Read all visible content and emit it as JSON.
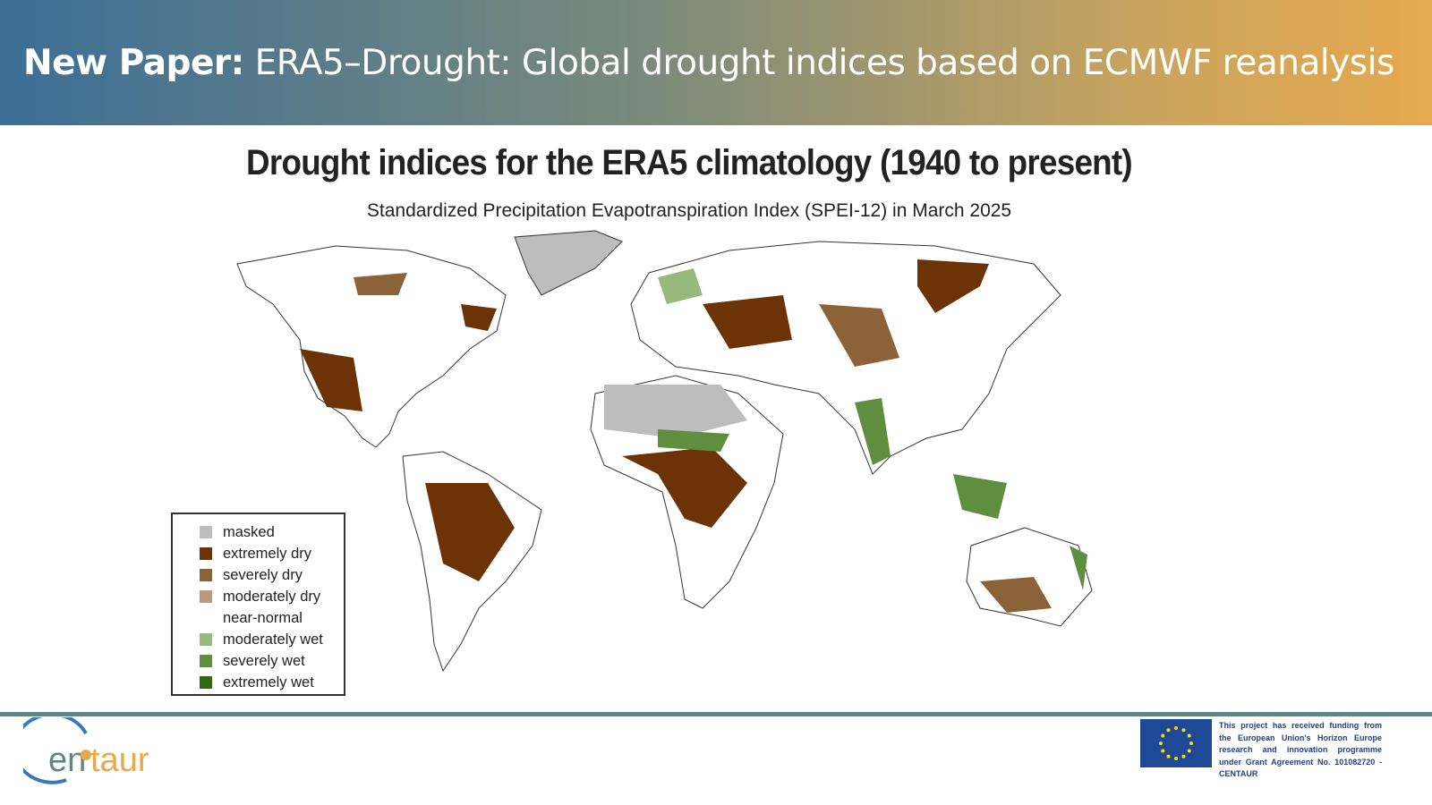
{
  "header": {
    "prefix": "New Paper:",
    "title": "ERA5–Drought: Global drought indices based on ECMWF reanalysis"
  },
  "slide": {
    "title": "Drought indices for the ERA5 climatology (1940 to present)",
    "subtitle": "Standardized Precipitation Evapotranspiration Index (SPEI-12) in March 2025"
  },
  "legend": {
    "items": [
      {
        "label": "masked",
        "color": "#bdbdbd"
      },
      {
        "label": "extremely dry",
        "color": "#6b3306"
      },
      {
        "label": "severely dry",
        "color": "#8c6239"
      },
      {
        "label": "moderately dry",
        "color": "#b79a80"
      },
      {
        "label": "near-normal",
        "color": "#ffffff"
      },
      {
        "label": "moderately wet",
        "color": "#97b97e"
      },
      {
        "label": "severely wet",
        "color": "#5f8f3e"
      },
      {
        "label": "extremely wet",
        "color": "#2f6a0c"
      }
    ]
  },
  "footer": {
    "logo_text": "entaur",
    "funding": "This project has received funding from the European Union's Horizon Europe research and innovation programme under Grant Agreement No. 101082720 - CENTAUR"
  },
  "colors": {
    "footer_bar": "#62857f",
    "eu_blue": "#1f4996",
    "eu_star": "#ffdd00"
  }
}
